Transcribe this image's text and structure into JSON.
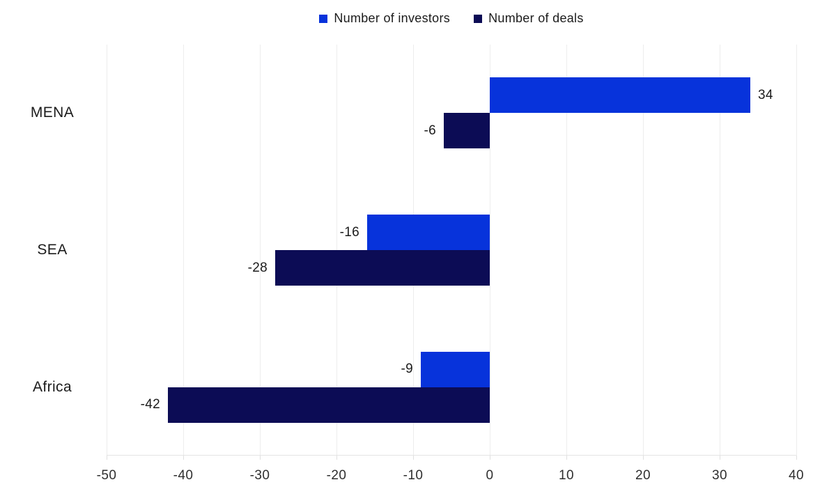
{
  "chart_data": {
    "type": "bar",
    "orientation": "horizontal",
    "title": "",
    "categories": [
      "MENA",
      "SEA",
      "Africa"
    ],
    "series": [
      {
        "name": "Number of investors",
        "color": "#0733db",
        "values": [
          34,
          -16,
          -9
        ]
      },
      {
        "name": "Number of deals",
        "color": "#0c0c55",
        "values": [
          -6,
          -28,
          -42
        ]
      }
    ],
    "xlim": [
      -50,
      40
    ],
    "xticks": [
      -50,
      -40,
      -30,
      -20,
      -10,
      0,
      10,
      20,
      30,
      40
    ],
    "grid": "vertical",
    "legend_position": "top-center",
    "data_labels": true,
    "colors": {
      "background": "#ffffff",
      "gridline": "#ededed",
      "axis_line": "#e3e3e3",
      "text": "#1b1b1b",
      "tick_text": "#2f2f2f"
    }
  }
}
